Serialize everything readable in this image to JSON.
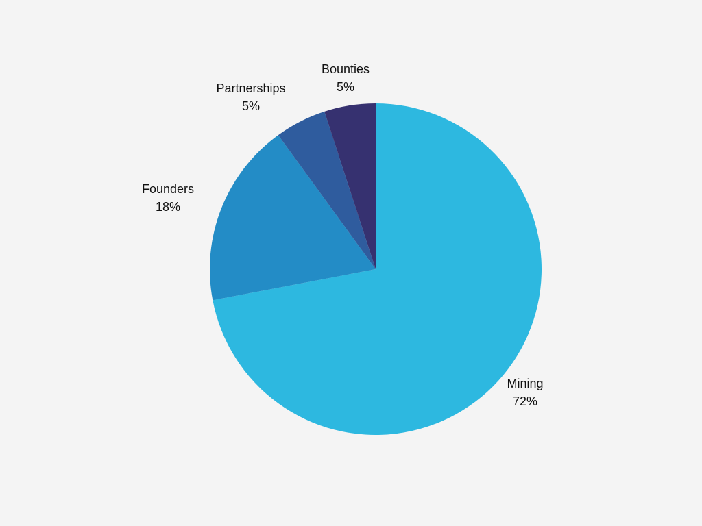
{
  "chart_data": {
    "type": "pie",
    "start_angle_deg": 0,
    "direction": "clockwise",
    "slices": [
      {
        "label": "Mining",
        "value": 72,
        "display": "72%",
        "color": "#2db8e0"
      },
      {
        "label": "Founders",
        "value": 18,
        "display": "18%",
        "color": "#238cc6"
      },
      {
        "label": "Partnerships",
        "value": 5,
        "display": "5%",
        "color": "#2f5c9e"
      },
      {
        "label": "Bounties",
        "value": 5,
        "display": "5%",
        "color": "#363170"
      }
    ],
    "title": "",
    "legend": "none",
    "label_position": "outside"
  }
}
